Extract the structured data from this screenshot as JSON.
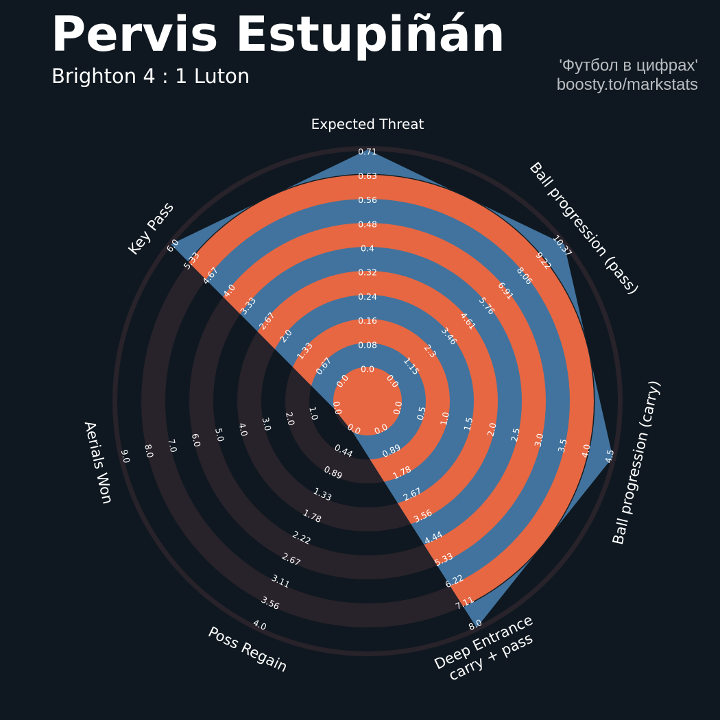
{
  "header": {
    "title": "Pervis Estupiñán",
    "subtitle": "Brighton 4 : 1 Luton",
    "credit_line1": "'Футбол в цифрах'",
    "credit_line2": "boosty.to/markstats"
  },
  "colors": {
    "background": "#0f1820",
    "ring_dark": "#28222a",
    "ring_accent": "#e66742",
    "player_area": "#41739e",
    "text": "#ffffff"
  },
  "chart_data": {
    "type": "radar",
    "title": "Pervis Estupiñán",
    "rings": 10,
    "parameters": [
      {
        "name": "Expected Threat",
        "value": 0.71,
        "ticks": [
          "0.0",
          "0.08",
          "0.16",
          "0.24",
          "0.32",
          "0.4",
          "0.48",
          "0.56",
          "0.63",
          "0.71"
        ]
      },
      {
        "name": "Ball progression (pass)",
        "value": 10.37,
        "ticks": [
          "0.0",
          "1.15",
          "2.3",
          "3.46",
          "4.61",
          "5.76",
          "6.91",
          "8.06",
          "9.22",
          "10.37"
        ]
      },
      {
        "name": "Ball progression (carry)",
        "value": 4.5,
        "ticks": [
          "0.0",
          "0.5",
          "1.0",
          "1.5",
          "2.0",
          "2.5",
          "3.0",
          "3.5",
          "4.0",
          "4.5"
        ]
      },
      {
        "name": "Deep Entrance\ncarry + pass",
        "value": 8.0,
        "ticks": [
          "0.0",
          "0.89",
          "1.78",
          "2.67",
          "3.56",
          "4.44",
          "5.33",
          "6.22",
          "7.11",
          "8.0"
        ]
      },
      {
        "name": "Poss Regain",
        "value": 0.0,
        "ticks": [
          "0.0",
          "0.44",
          "0.89",
          "1.33",
          "1.78",
          "2.22",
          "2.67",
          "3.11",
          "3.56",
          "4.0"
        ]
      },
      {
        "name": "Aerials Won",
        "value": 0.0,
        "ticks": [
          "0.0",
          "1.0",
          "2.0",
          "3.0",
          "4.0",
          "5.0",
          "6.0",
          "7.0",
          "8.0",
          "9.0"
        ]
      },
      {
        "name": "Key Pass",
        "value": 6.0,
        "ticks": [
          "0.0",
          "0.67",
          "1.33",
          "2.0",
          "2.67",
          "3.33",
          "4.0",
          "4.67",
          "5.33",
          "6.0"
        ]
      }
    ]
  }
}
